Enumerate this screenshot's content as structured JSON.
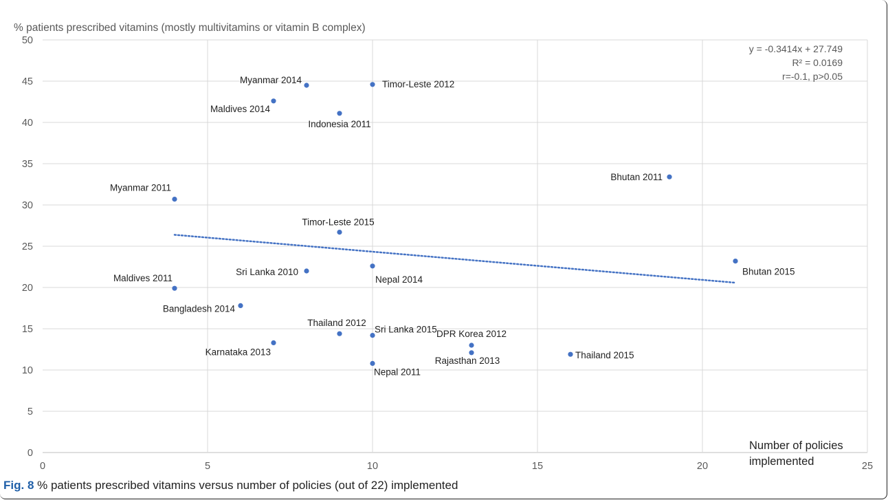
{
  "chart_data": {
    "type": "scatter",
    "title": "% patients prescribed vitamins (mostly multivitamins or vitamin B complex)",
    "xlabel_line1": "Number of policies",
    "xlabel_line2": "implemented",
    "xlim": [
      0,
      25
    ],
    "ylim": [
      0,
      50
    ],
    "xticks": [
      0,
      5,
      10,
      15,
      20,
      25
    ],
    "yticks": [
      0,
      5,
      10,
      15,
      20,
      25,
      30,
      35,
      40,
      45,
      50
    ],
    "grid": true,
    "legend": "none",
    "point_color": "#4472c4",
    "points": [
      {
        "label": "Myanmar 2014",
        "x": 8,
        "y": 44.5
      },
      {
        "label": "Timor-Leste 2012",
        "x": 10,
        "y": 44.6
      },
      {
        "label": "Maldives 2014",
        "x": 7,
        "y": 42.6
      },
      {
        "label": "Indonesia 2011",
        "x": 9,
        "y": 41.1
      },
      {
        "label": "Bhutan 2011",
        "x": 19,
        "y": 33.4
      },
      {
        "label": "Myanmar 2011",
        "x": 4,
        "y": 30.7
      },
      {
        "label": "Timor-Leste 2015",
        "x": 9,
        "y": 26.7
      },
      {
        "label": "Bhutan 2015",
        "x": 21,
        "y": 23.2
      },
      {
        "label": "Nepal 2014",
        "x": 10,
        "y": 22.6
      },
      {
        "label": "Sri Lanka 2010",
        "x": 8,
        "y": 22.0
      },
      {
        "label": "Maldives 2011",
        "x": 4,
        "y": 19.9
      },
      {
        "label": "Bangladesh 2014",
        "x": 6,
        "y": 17.8
      },
      {
        "label": "Thailand 2012",
        "x": 9,
        "y": 14.4
      },
      {
        "label": "Sri Lanka 2015",
        "x": 10,
        "y": 14.2
      },
      {
        "label": "Karnataka 2013",
        "x": 7,
        "y": 13.3
      },
      {
        "label": "DPR Korea 2012",
        "x": 13,
        "y": 13.0
      },
      {
        "label": "Rajasthan 2013",
        "x": 13,
        "y": 12.1
      },
      {
        "label": "Thailand 2015",
        "x": 16,
        "y": 11.9
      },
      {
        "label": "Nepal 2011",
        "x": 10,
        "y": 10.8
      }
    ],
    "trendline": {
      "slope": -0.3414,
      "intercept": 27.749,
      "x_range": [
        4,
        21
      ],
      "style": "dotted"
    },
    "annotation": [
      "y = -0.3414x + 27.749",
      "R² = 0.0169",
      "r=-0.1, p>0.05"
    ]
  },
  "caption": {
    "label": "Fig. 8",
    "text": " % patients prescribed vitamins versus number of policies (out of 22) implemented"
  }
}
